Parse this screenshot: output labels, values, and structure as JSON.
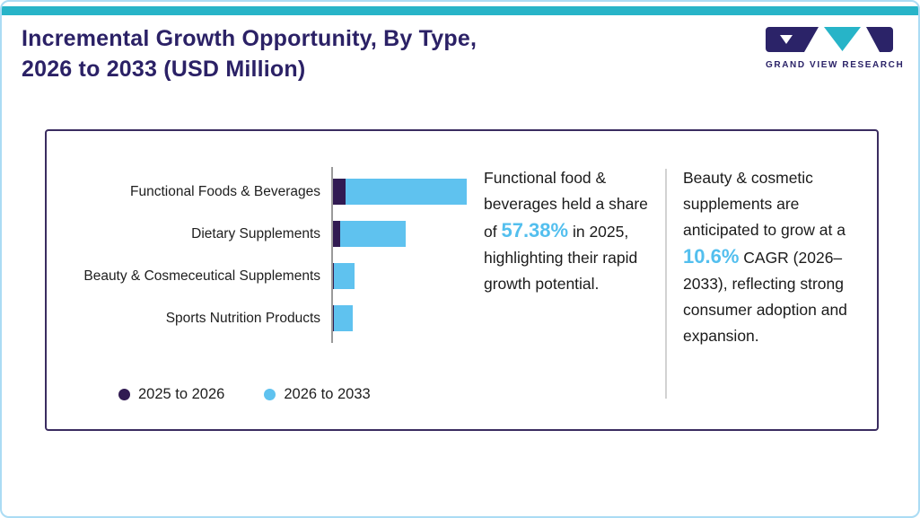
{
  "page": {
    "title_line1": "Incremental Growth Opportunity, By Type,",
    "title_line2": "2026 to 2033 (USD Million)",
    "brand": "GRAND VIEW RESEARCH"
  },
  "colors": {
    "accent_teal": "#27b4c8",
    "title_navy": "#2b2166",
    "brand_navy": "#2b2368",
    "light_blue": "#5fc2ef",
    "dark_purple": "#311b52",
    "highlight_blue": "#53bfee",
    "card_border": "#3a2c60"
  },
  "chart_data": {
    "type": "bar",
    "orientation": "horizontal",
    "stacked": true,
    "title": "Incremental Growth Opportunity, By Type, 2026 to 2033 (USD Million)",
    "categories": [
      "Functional Foods & Beverages",
      "Dietary Supplements",
      "Beauty & Cosmeceutical Supplements",
      "Sports Nutrition Products"
    ],
    "series": [
      {
        "name": "2025 to 2026",
        "color": "#311b52",
        "values": [
          10,
          6,
          1,
          1
        ]
      },
      {
        "name": "2026 to 2033",
        "color": "#5fc2ef",
        "values": [
          100,
          54,
          17,
          15
        ]
      }
    ],
    "value_axis_labels_visible": false,
    "units": "relative incremental growth (USD Million, axis unlabeled)",
    "legend_position": "bottom-left",
    "grid": false
  },
  "insights": [
    {
      "pre": "Functional food & beverages held a share of ",
      "highlight": "57.38%",
      "post": " in 2025, highlighting their rapid growth potential."
    },
    {
      "pre": "Beauty & cosmetic supplements are anticipated to grow at a ",
      "highlight": "10.6%",
      "post": " CAGR (2026–2033), reflecting strong consumer adoption and expansion."
    }
  ]
}
